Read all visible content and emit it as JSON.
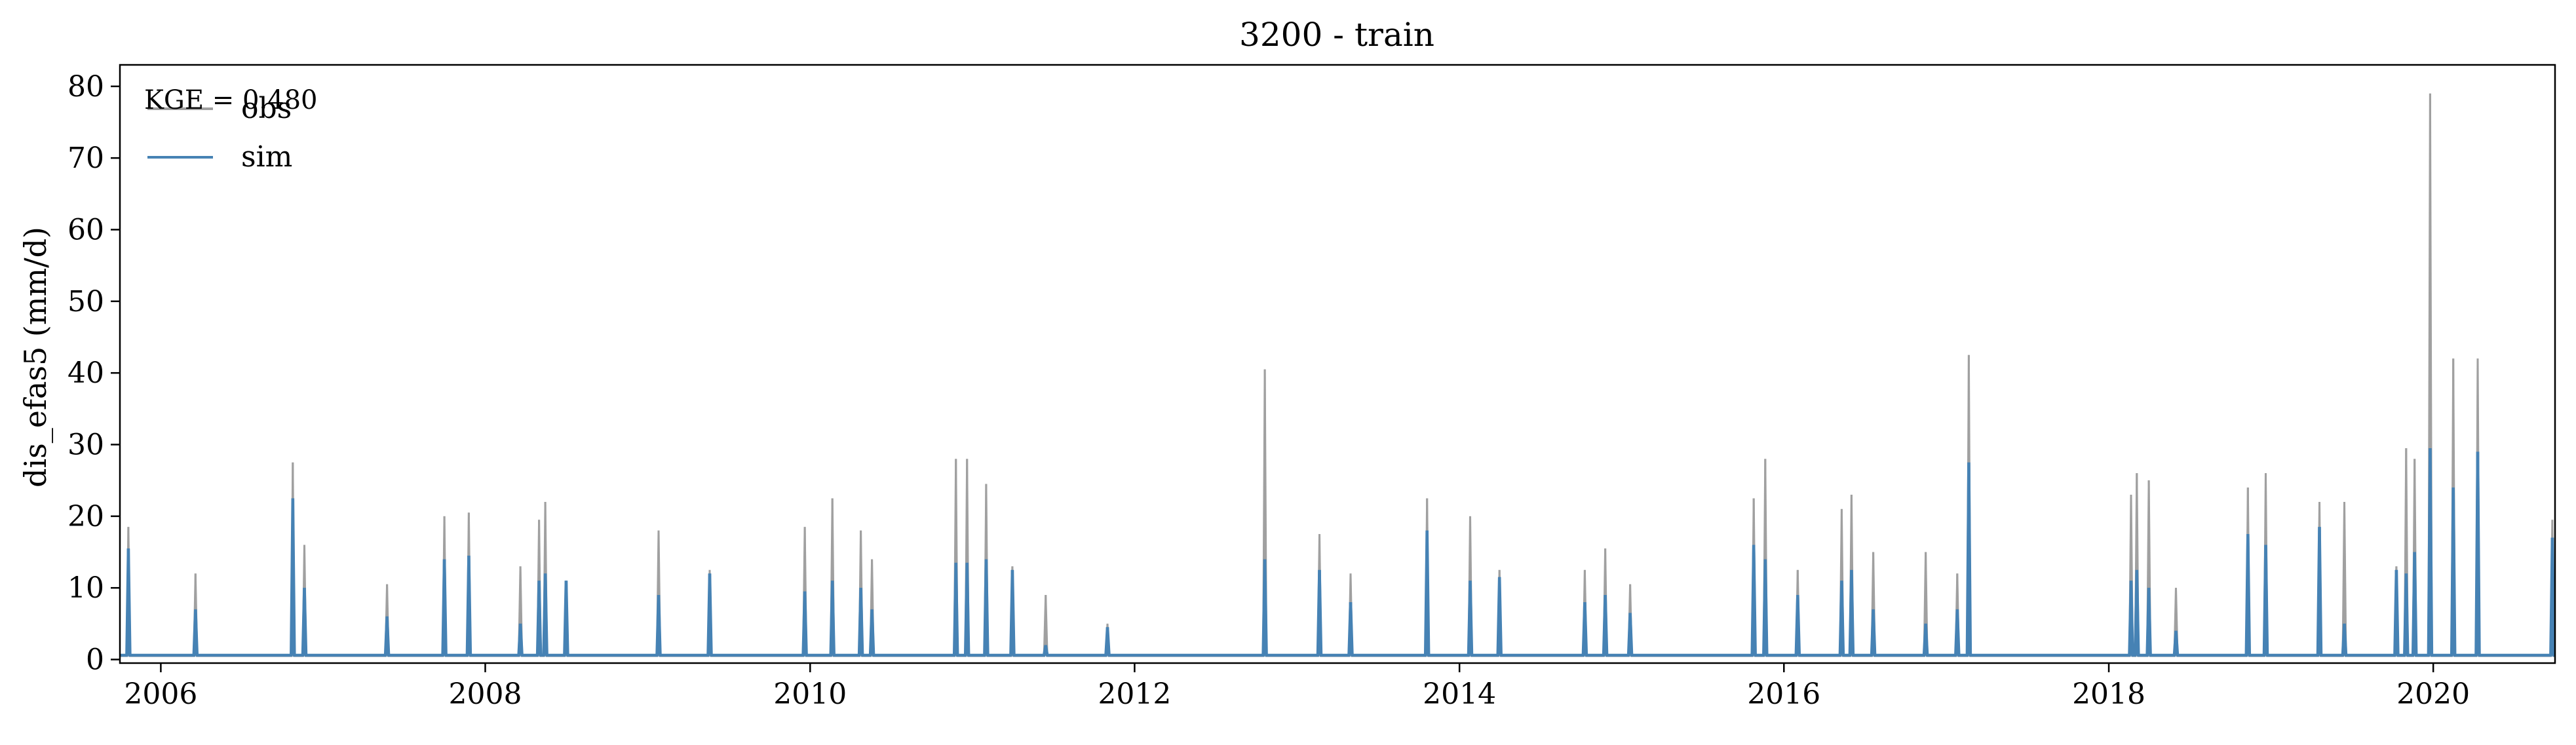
{
  "chart_data": {
    "type": "line",
    "title": "3200 - train",
    "xlabel": "",
    "ylabel": "dis_efas5 (mm/d)",
    "xlim": [
      "2005-10-01",
      "2020-10-01"
    ],
    "ylim": [
      -0.5,
      83
    ],
    "x_ticks": [
      "2006",
      "2008",
      "2010",
      "2012",
      "2014",
      "2016",
      "2018",
      "2020"
    ],
    "y_ticks": [
      "0",
      "10",
      "20",
      "30",
      "40",
      "50",
      "60",
      "70",
      "80"
    ],
    "grid": false,
    "legend": {
      "position": "top-left",
      "entries": [
        "obs",
        "sim"
      ]
    },
    "annotation": "KGE = 0.480",
    "colors": {
      "obs": "#a0a0a0",
      "sim": "#4682b4"
    },
    "baseline": {
      "obs": 0.5,
      "sim": 0.6
    },
    "series": [
      {
        "name": "obs",
        "points": [
          [
            "2005-10-20",
            18.5
          ],
          [
            "2006-03-20",
            12.0
          ],
          [
            "2006-10-25",
            27.5
          ],
          [
            "2006-11-20",
            16.0
          ],
          [
            "2007-05-25",
            10.5
          ],
          [
            "2007-10-01",
            20.0
          ],
          [
            "2007-11-25",
            20.5
          ],
          [
            "2008-03-20",
            13.0
          ],
          [
            "2008-05-01",
            19.5
          ],
          [
            "2008-05-15",
            22.0
          ],
          [
            "2008-07-01",
            11.0
          ],
          [
            "2009-01-25",
            18.0
          ],
          [
            "2009-05-20",
            12.5
          ],
          [
            "2009-12-20",
            18.5
          ],
          [
            "2010-02-20",
            22.5
          ],
          [
            "2010-04-25",
            18.0
          ],
          [
            "2010-05-20",
            14.0
          ],
          [
            "2010-11-25",
            28.0
          ],
          [
            "2010-12-20",
            28.0
          ],
          [
            "2011-02-01",
            24.5
          ],
          [
            "2011-04-01",
            13.0
          ],
          [
            "2011-06-15",
            9.0
          ],
          [
            "2011-11-01",
            5.0
          ],
          [
            "2012-10-20",
            40.5
          ],
          [
            "2013-02-20",
            17.5
          ],
          [
            "2013-05-01",
            12.0
          ],
          [
            "2013-10-20",
            22.5
          ],
          [
            "2014-01-25",
            20.0
          ],
          [
            "2014-04-01",
            12.5
          ],
          [
            "2014-10-10",
            12.5
          ],
          [
            "2014-11-25",
            15.5
          ],
          [
            "2015-01-20",
            10.5
          ],
          [
            "2015-10-25",
            22.5
          ],
          [
            "2015-11-20",
            28.0
          ],
          [
            "2016-02-01",
            12.5
          ],
          [
            "2016-05-10",
            21.0
          ],
          [
            "2016-06-01",
            23.0
          ],
          [
            "2016-07-20",
            15.0
          ],
          [
            "2016-11-15",
            15.0
          ],
          [
            "2017-01-25",
            12.0
          ],
          [
            "2017-02-20",
            42.5
          ],
          [
            "2018-02-20",
            23.0
          ],
          [
            "2018-03-05",
            26.0
          ],
          [
            "2018-04-01",
            25.0
          ],
          [
            "2018-06-01",
            10.0
          ],
          [
            "2018-11-10",
            24.0
          ],
          [
            "2018-12-20",
            26.0
          ],
          [
            "2019-04-20",
            22.0
          ],
          [
            "2019-06-15",
            22.0
          ],
          [
            "2019-10-10",
            13.0
          ],
          [
            "2019-11-01",
            29.5
          ],
          [
            "2019-11-20",
            28.0
          ],
          [
            "2019-12-25",
            79.0
          ],
          [
            "2020-02-15",
            42.0
          ],
          [
            "2020-04-10",
            42.0
          ],
          [
            "2020-09-25",
            19.5
          ]
        ]
      },
      {
        "name": "sim",
        "points": [
          [
            "2005-10-20",
            15.5
          ],
          [
            "2006-03-20",
            7.0
          ],
          [
            "2006-10-25",
            22.5
          ],
          [
            "2006-11-20",
            10.0
          ],
          [
            "2007-05-25",
            6.0
          ],
          [
            "2007-10-01",
            14.0
          ],
          [
            "2007-11-25",
            14.5
          ],
          [
            "2008-03-20",
            5.0
          ],
          [
            "2008-05-01",
            11.0
          ],
          [
            "2008-05-15",
            12.0
          ],
          [
            "2008-07-01",
            11.0
          ],
          [
            "2009-01-25",
            9.0
          ],
          [
            "2009-05-20",
            12.0
          ],
          [
            "2009-12-20",
            9.5
          ],
          [
            "2010-02-20",
            11.0
          ],
          [
            "2010-04-25",
            10.0
          ],
          [
            "2010-05-20",
            7.0
          ],
          [
            "2010-11-25",
            13.5
          ],
          [
            "2010-12-20",
            13.5
          ],
          [
            "2011-02-01",
            14.0
          ],
          [
            "2011-04-01",
            12.5
          ],
          [
            "2011-06-15",
            2.0
          ],
          [
            "2011-11-01",
            4.5
          ],
          [
            "2012-10-20",
            14.0
          ],
          [
            "2013-02-20",
            12.5
          ],
          [
            "2013-05-01",
            8.0
          ],
          [
            "2013-10-20",
            18.0
          ],
          [
            "2014-01-25",
            11.0
          ],
          [
            "2014-04-01",
            11.5
          ],
          [
            "2014-10-10",
            8.0
          ],
          [
            "2014-11-25",
            9.0
          ],
          [
            "2015-01-20",
            6.5
          ],
          [
            "2015-10-25",
            16.0
          ],
          [
            "2015-11-20",
            14.0
          ],
          [
            "2016-02-01",
            9.0
          ],
          [
            "2016-05-10",
            11.0
          ],
          [
            "2016-06-01",
            12.5
          ],
          [
            "2016-07-20",
            7.0
          ],
          [
            "2016-11-15",
            5.0
          ],
          [
            "2017-01-25",
            7.0
          ],
          [
            "2017-02-20",
            27.5
          ],
          [
            "2018-02-20",
            11.0
          ],
          [
            "2018-03-05",
            12.5
          ],
          [
            "2018-04-01",
            10.0
          ],
          [
            "2018-06-01",
            4.0
          ],
          [
            "2018-11-10",
            17.5
          ],
          [
            "2018-12-20",
            16.0
          ],
          [
            "2019-04-20",
            18.5
          ],
          [
            "2019-06-15",
            5.0
          ],
          [
            "2019-10-10",
            12.5
          ],
          [
            "2019-11-01",
            12.0
          ],
          [
            "2019-11-20",
            15.0
          ],
          [
            "2019-12-25",
            29.5
          ],
          [
            "2020-02-15",
            24.0
          ],
          [
            "2020-04-10",
            29.0
          ],
          [
            "2020-09-25",
            17.0
          ]
        ]
      }
    ]
  }
}
